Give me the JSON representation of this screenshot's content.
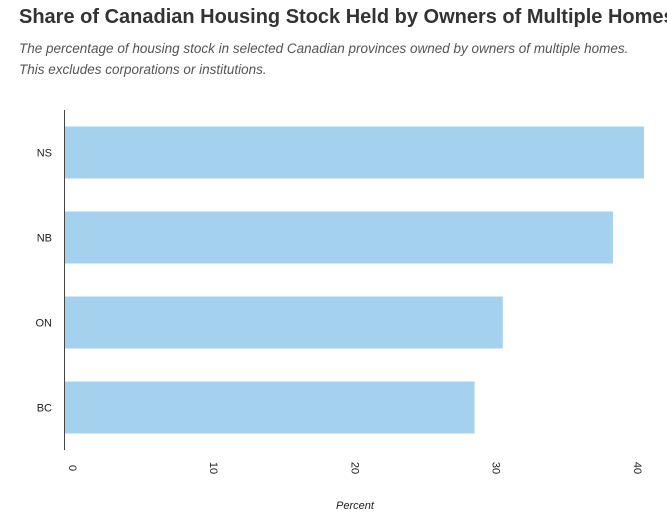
{
  "title": "Share of Canadian Housing Stock Held by Owners of Multiple Homes",
  "subtitle": "The percentage of housing stock in selected Canadian provinces owned by owners of multiple homes. This excludes corporations or institutions.",
  "chart_data": {
    "type": "bar",
    "orientation": "horizontal",
    "categories": [
      "NS",
      "NB",
      "ON",
      "BC"
    ],
    "values": [
      41.0,
      38.8,
      31.0,
      29.0
    ],
    "xlabel": "Percent",
    "ylabel": "",
    "xlim": [
      0,
      41
    ],
    "xticks": [
      "0",
      "10",
      "20",
      "30",
      "40"
    ],
    "grid": false,
    "legend": "none",
    "bar_color": "#a3d1ee",
    "axis_color": "#444444"
  }
}
